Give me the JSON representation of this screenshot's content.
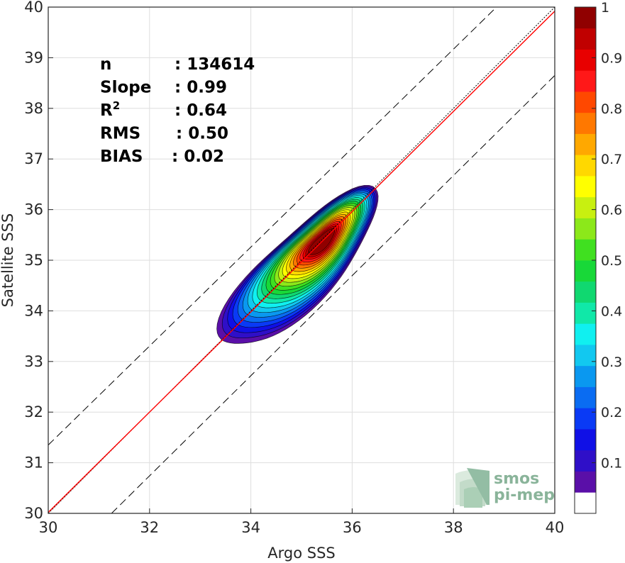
{
  "chart_data": {
    "type": "contour-density",
    "xlabel": "Argo SSS",
    "ylabel": "Satellite SSS",
    "xlim": [
      30,
      40
    ],
    "ylim": [
      30,
      40
    ],
    "x_ticks": [
      "30",
      "32",
      "34",
      "36",
      "38",
      "40"
    ],
    "y_ticks": [
      "30",
      "31",
      "32",
      "33",
      "34",
      "35",
      "36",
      "37",
      "38",
      "39",
      "40"
    ],
    "grid": true,
    "stats": [
      {
        "label": "n",
        "value": ": 134614"
      },
      {
        "label": "Slope",
        "value": ": 0.99"
      },
      {
        "label": "R",
        "sup": "2",
        "value": ": 0.64"
      },
      {
        "label": "RMS",
        "value": ": 0.50"
      },
      {
        "label": "BIAS",
        "value": ": 0.02"
      }
    ],
    "density_peak": {
      "x": 35.4,
      "y": 35.35
    },
    "lines": [
      {
        "name": "1:1",
        "style": "dotted",
        "color": "#000000",
        "points": [
          [
            30,
            30
          ],
          [
            40,
            40
          ]
        ]
      },
      {
        "name": "regression",
        "style": "solid",
        "color": "#ff0000",
        "points": [
          [
            30,
            30.02
          ],
          [
            40,
            39.92
          ]
        ]
      },
      {
        "name": "upper",
        "style": "dashed",
        "color": "#000000",
        "points": [
          [
            30,
            31.35
          ],
          [
            38.85,
            40
          ]
        ]
      },
      {
        "name": "lower",
        "style": "dashed",
        "color": "#000000",
        "points": [
          [
            31.25,
            30
          ],
          [
            40,
            38.65
          ]
        ]
      }
    ],
    "colorbar": {
      "range": [
        0,
        1
      ],
      "ticks": [
        "0.1",
        "0.2",
        "0.3",
        "0.4",
        "0.5",
        "0.6",
        "0.7",
        "0.8",
        "0.9",
        "1"
      ],
      "colors": [
        "#ffffff",
        "#5a0fa8",
        "#2f0fc8",
        "#1010e6",
        "#0a3af5",
        "#0a6cf2",
        "#0a98f0",
        "#12c8f0",
        "#10f0f0",
        "#10e8a8",
        "#10d870",
        "#18d838",
        "#40e020",
        "#8ce81a",
        "#c8f010",
        "#ffff00",
        "#ffd800",
        "#ffa800",
        "#ff7800",
        "#ff4800",
        "#ff1818",
        "#e80000",
        "#c00000",
        "#900000"
      ]
    }
  },
  "logo": {
    "line1": "smos",
    "line2": "pi-mep"
  }
}
